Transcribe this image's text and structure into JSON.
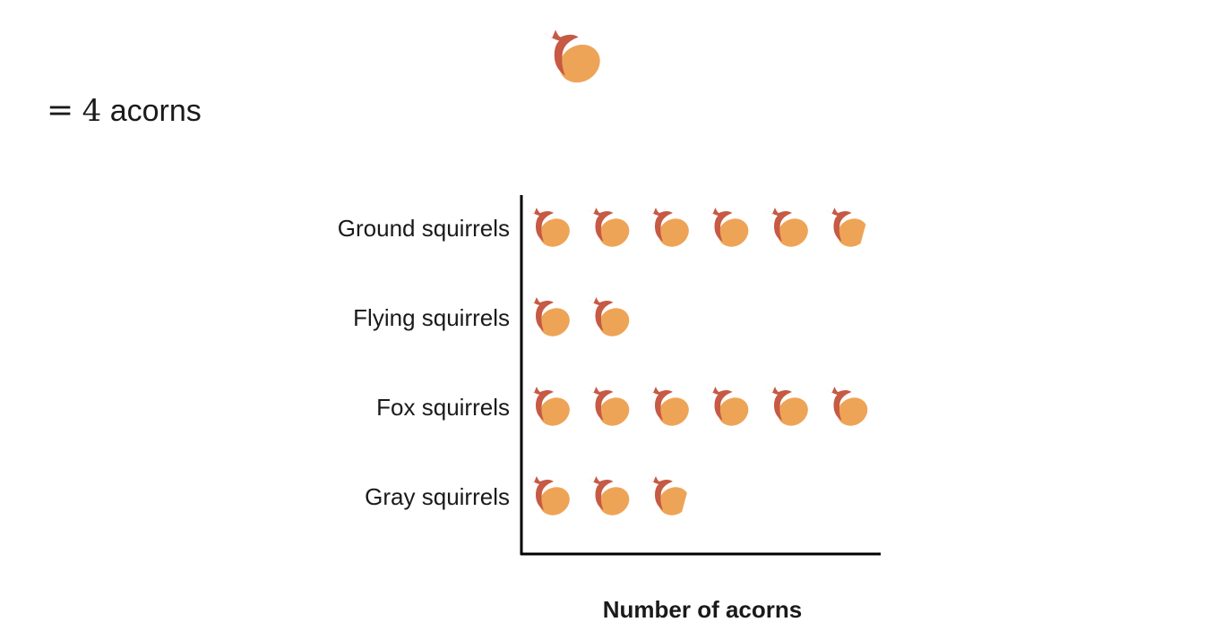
{
  "key": {
    "icon": "acorn-icon",
    "equals": "=",
    "value": "4",
    "unit": "acorns"
  },
  "colors": {
    "cap": "#c65a45",
    "nut": "#eea456",
    "axis": "#000000"
  },
  "chart_data": {
    "type": "pictograph",
    "orientation": "horizontal",
    "icon": "acorn-icon",
    "acorns_per_icon": 4,
    "categories": [
      "Ground squirrels",
      "Flying squirrels",
      "Fox squirrels",
      "Gray squirrels"
    ],
    "values": [
      22,
      8,
      24,
      10
    ],
    "icons_shown": [
      5.5,
      2,
      6,
      2.5
    ],
    "xlabel": "Number of acorns",
    "ylabel": "",
    "title": ""
  }
}
